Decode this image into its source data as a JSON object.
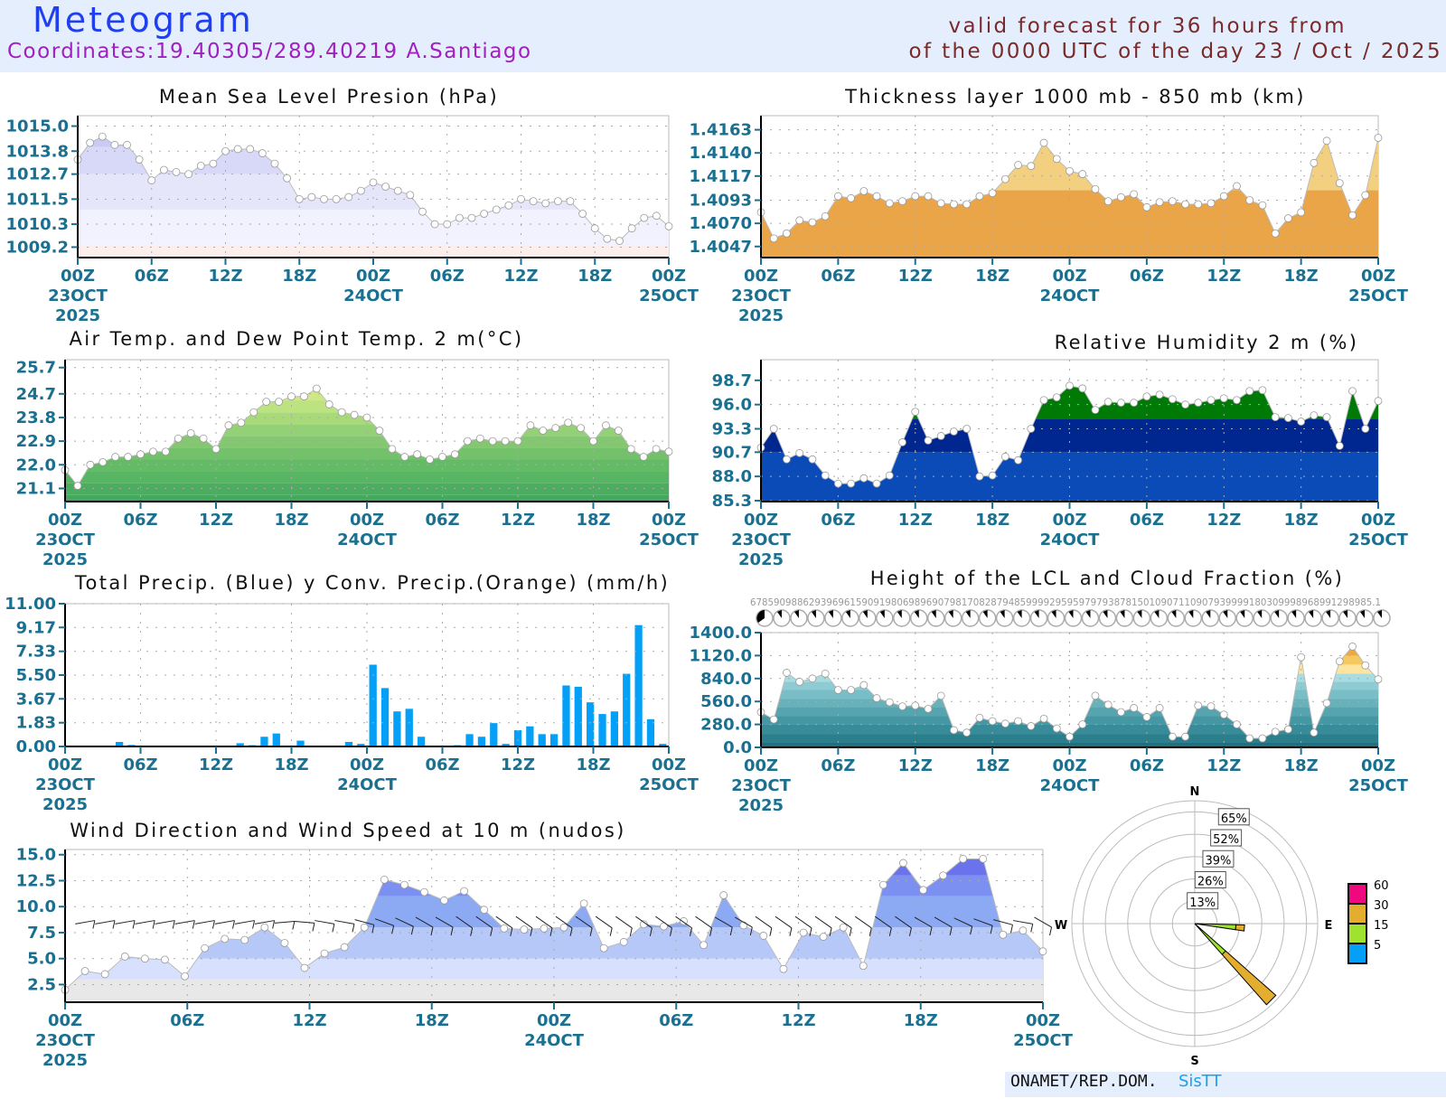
{
  "header": {
    "title": "Meteogram",
    "coordinates": "Coordinates:19.40305/289.40219  A.Santiago",
    "valid_line1": "valid forecast for 36 hours from",
    "valid_line2": "of the 0000 UTC of the day 23 / Oct / 2025"
  },
  "time_axis": {
    "labels": [
      [
        "00Z",
        "23OCT",
        "2025"
      ],
      [
        "06Z"
      ],
      [
        "12Z"
      ],
      [
        "18Z"
      ],
      [
        "00Z",
        "24OCT"
      ],
      [
        "06Z"
      ],
      [
        "12Z"
      ],
      [
        "18Z"
      ],
      [
        "00Z",
        "25OCT"
      ]
    ]
  },
  "footer": {
    "org": "ONAMET/REP.DOM.",
    "brand": "SisTT"
  },
  "chart_data": [
    {
      "id": "mslp",
      "type": "area",
      "title": "Mean Sea Level Presion (hPa)",
      "yticks": [
        1009.2,
        1010.3,
        1011.5,
        1012.7,
        1013.8,
        1015.0
      ],
      "ylim": [
        8.7,
        15.5
      ],
      "base_offset": 1000,
      "x_hours": [
        0,
        48
      ],
      "grid": true,
      "values": [
        1013.4,
        1014.2,
        1014.5,
        1014.1,
        1014.1,
        1013.4,
        1012.4,
        1012.9,
        1012.8,
        1012.7,
        1013.1,
        1013.2,
        1013.8,
        1013.9,
        1013.9,
        1013.7,
        1013.2,
        1012.5,
        1011.5,
        1011.6,
        1011.5,
        1011.5,
        1011.6,
        1011.9,
        1012.3,
        1012.1,
        1011.9,
        1011.7,
        1010.9,
        1010.3,
        1010.3,
        1010.6,
        1010.6,
        1010.8,
        1011.0,
        1011.2,
        1011.5,
        1011.4,
        1011.3,
        1011.4,
        1011.4,
        1010.8,
        1010.1,
        1009.6,
        1009.5,
        1010.1,
        1010.6,
        1010.7,
        1010.2
      ],
      "band_colors": [
        "#fdeeee",
        "#f2f2fe",
        "#e6e6fb",
        "#d8d8f8",
        "#cacaf4"
      ],
      "band_edges": [
        8.7,
        9.3,
        11.0,
        12.7,
        14.0,
        15.5
      ]
    },
    {
      "id": "thickness",
      "type": "area",
      "title": "Thickness layer 1000 mb - 850 mb (km)",
      "yticks": [
        1.4047,
        1.407,
        1.4093,
        1.4117,
        1.414,
        1.4163
      ],
      "ylim": [
        1.4036,
        1.4177
      ],
      "x_hours": [
        0,
        48
      ],
      "grid": true,
      "values": [
        1.4081,
        1.4055,
        1.406,
        1.4073,
        1.4071,
        1.4077,
        1.4097,
        1.4095,
        1.4102,
        1.4097,
        1.409,
        1.4092,
        1.4097,
        1.4097,
        1.409,
        1.4089,
        1.4089,
        1.4097,
        1.41,
        1.4114,
        1.4128,
        1.4127,
        1.415,
        1.4134,
        1.4122,
        1.4119,
        1.4104,
        1.4092,
        1.4096,
        1.4099,
        1.4086,
        1.4091,
        1.4092,
        1.4089,
        1.4089,
        1.409,
        1.4097,
        1.4107,
        1.4093,
        1.4088,
        1.406,
        1.4075,
        1.4081,
        1.413,
        1.4152,
        1.411,
        1.4078,
        1.4098,
        1.4155
      ],
      "band_colors": [
        "#eba549",
        "#f3cf80"
      ],
      "band_edges": [
        1.4036,
        1.4103,
        1.4177
      ]
    },
    {
      "id": "temperature",
      "type": "area",
      "title": "Air Temp. and Dew Point Temp. 2 m(°C)",
      "yticks": [
        21.1,
        22.0,
        22.9,
        23.8,
        24.7,
        25.7
      ],
      "ylim": [
        20.6,
        26.0
      ],
      "x_hours": [
        0,
        48
      ],
      "grid": true,
      "values": [
        21.8,
        21.2,
        22.0,
        22.1,
        22.3,
        22.3,
        22.4,
        22.5,
        22.5,
        23.0,
        23.2,
        23.0,
        22.6,
        23.5,
        23.6,
        24.0,
        24.4,
        24.4,
        24.6,
        24.6,
        24.9,
        24.3,
        24.0,
        23.9,
        23.8,
        23.3,
        22.6,
        22.3,
        22.4,
        22.2,
        22.3,
        22.4,
        22.9,
        23.0,
        22.9,
        22.9,
        22.9,
        23.5,
        23.3,
        23.4,
        23.6,
        23.4,
        22.9,
        23.5,
        23.3,
        22.6,
        22.3,
        22.6,
        22.5
      ],
      "band_colors": [
        "#44a85e",
        "#4cad60",
        "#57b563",
        "#64bb66",
        "#73c16b",
        "#83c870",
        "#94d075",
        "#a8da7a",
        "#bde380",
        "#cfe887"
      ],
      "band_edges": [
        20.6,
        20.85,
        21.3,
        21.75,
        22.2,
        22.65,
        23.1,
        23.55,
        24.0,
        24.45,
        26.0
      ]
    },
    {
      "id": "humidity",
      "type": "area",
      "title": "Relative Humidity 2 m (%)",
      "yticks": [
        85.3,
        88.0,
        90.7,
        93.3,
        96.0,
        98.7
      ],
      "ylim": [
        85.2,
        101.0
      ],
      "x_hours": [
        0,
        48
      ],
      "grid": true,
      "values": [
        91.2,
        93.3,
        89.9,
        90.6,
        89.9,
        88.1,
        87.2,
        87.2,
        87.8,
        87.2,
        88.1,
        91.8,
        95.2,
        92.0,
        92.5,
        93.0,
        93.3,
        88.0,
        88.1,
        90.2,
        89.8,
        93.3,
        96.5,
        96.8,
        98.1,
        97.8,
        95.4,
        96.3,
        96.2,
        96.2,
        96.9,
        97.1,
        96.6,
        96.0,
        96.2,
        96.5,
        96.7,
        96.5,
        97.5,
        97.6,
        94.6,
        94.5,
        94.1,
        94.8,
        94.6,
        91.4,
        97.5,
        93.3,
        96.4
      ],
      "band_colors": [
        "#0b4bb7",
        "#002690",
        "#007a06",
        "#4db14d"
      ],
      "band_edges": [
        85.2,
        90.7,
        94.4,
        98.0,
        101.0
      ]
    },
    {
      "id": "precip",
      "type": "bar",
      "title": "Total Precip. (Blue) y Conv. Precip.(Orange) (mm/h)",
      "yticks": [
        0.0,
        1.83,
        3.67,
        5.5,
        7.33,
        9.17,
        11.0
      ],
      "ylim": [
        0,
        11.0
      ],
      "x_hours": [
        0,
        48
      ],
      "grid": true,
      "bar_color": "#04a0f8",
      "values": [
        0,
        0,
        0,
        0,
        0.35,
        0.12,
        0,
        0,
        0,
        0,
        0,
        0,
        0,
        0,
        0.25,
        0.1,
        0.75,
        1.0,
        0,
        0.45,
        0,
        0,
        0,
        0.35,
        0.2,
        6.3,
        4.5,
        2.7,
        2.9,
        0.75,
        0,
        0,
        0.1,
        0.95,
        0.75,
        1.8,
        0.2,
        1.25,
        1.55,
        0.95,
        0.95,
        4.7,
        4.6,
        3.4,
        2.5,
        2.7,
        5.6,
        9.35,
        2.1,
        0.2
      ]
    },
    {
      "id": "lcl",
      "type": "area",
      "title": "Height of the LCL and Cloud Fraction (%)",
      "yticks": [
        0.0,
        280.0,
        560.0,
        840.0,
        1120.0,
        1400.0
      ],
      "ylim": [
        0,
        1400
      ],
      "x_hours": [
        0,
        48
      ],
      "grid": true,
      "values": [
        430,
        340,
        910,
        800,
        840,
        900,
        700,
        700,
        760,
        600,
        550,
        500,
        510,
        470,
        630,
        210,
        180,
        360,
        320,
        290,
        320,
        260,
        350,
        230,
        130,
        280,
        630,
        520,
        430,
        480,
        370,
        480,
        130,
        130,
        510,
        500,
        400,
        280,
        110,
        110,
        190,
        220,
        1100,
        180,
        540,
        1050,
        1230,
        1000,
        830
      ],
      "band_colors": [
        "#22707f",
        "#2b7e8c",
        "#388b98",
        "#4497a3",
        "#55a4af",
        "#67b1bb",
        "#79bdc6",
        "#8ecbd2",
        "#a5dde3",
        "#fde5a0",
        "#f6c860",
        "#f0a742"
      ],
      "band_edges": [
        0,
        60,
        160,
        280,
        380,
        490,
        590,
        700,
        800,
        900,
        1010,
        1120,
        1250,
        1400
      ],
      "cloud_fraction_labels": "6785909886293969615909198069896907981708287948599992959597979387815010907110907939999180309998968991298985.1",
      "cloud_symbols_count": 37
    },
    {
      "id": "wind",
      "type": "area",
      "title": "Wind Direction and Wind Speed at 10 m (nudos)",
      "yticks": [
        2.5,
        5.0,
        7.5,
        10.0,
        12.5,
        15.0
      ],
      "ylim": [
        0.8,
        15.5
      ],
      "x_hours": [
        0,
        48
      ],
      "grid": true,
      "values": [
        2.0,
        3.8,
        3.5,
        5.2,
        5.0,
        4.9,
        3.3,
        6.0,
        6.9,
        6.8,
        8.0,
        6.5,
        4.1,
        5.5,
        6.1,
        8.0,
        12.6,
        12.1,
        11.4,
        10.6,
        11.5,
        9.7,
        7.9,
        7.8,
        7.9,
        8.0,
        10.3,
        6.0,
        6.6,
        8.3,
        8.1,
        8.6,
        6.3,
        11.1,
        8.2,
        7.2,
        4.0,
        7.5,
        7.1,
        8.0,
        4.3,
        12.1,
        14.2,
        11.6,
        13.0,
        14.6,
        14.6,
        7.3,
        7.7,
        5.7
      ],
      "band_colors": [
        "#e8e8e8",
        "#d7e0fc",
        "#b6c8f8",
        "#8caaf4",
        "#7b90f0",
        "#6a72ec"
      ],
      "band_edges": [
        0.8,
        3.0,
        5.0,
        8.0,
        11.0,
        13.0,
        15.5
      ],
      "barb_direction_deg": [
        120,
        80,
        80,
        80,
        80,
        80,
        80,
        80,
        80,
        80,
        80,
        85,
        95,
        100,
        100,
        105,
        110,
        115,
        120,
        120,
        125,
        125,
        125,
        125,
        125,
        125,
        125,
        125,
        125,
        125,
        125,
        125,
        125,
        120,
        120,
        125,
        125,
        125,
        125,
        125,
        125,
        125,
        125,
        120,
        120,
        115,
        110,
        105,
        100,
        120
      ]
    },
    {
      "id": "wind_rose",
      "type": "pie",
      "title": "",
      "ring_labels": [
        "13%",
        "26%",
        "39%",
        "52%",
        "65%"
      ],
      "directions": [
        "N",
        "E",
        "S",
        "W"
      ],
      "legend": [
        {
          "label": "60",
          "color": "#f0087e"
        },
        {
          "label": "30",
          "color": "#e3ad30"
        },
        {
          "label": "15",
          "color": "#9fe330"
        },
        {
          "label": "5",
          "color": "#04a0f8"
        }
      ],
      "petals": [
        {
          "direction_deg": 95,
          "segments": [
            {
              "speed_class": "5-15",
              "percent": 24,
              "color": "#9fe330"
            },
            {
              "speed_class": "15-30",
              "percent": 5,
              "color": "#e3ad30"
            }
          ]
        },
        {
          "direction_deg": 135,
          "segments": [
            {
              "speed_class": "5-15",
              "percent": 24,
              "color": "#9fe330"
            },
            {
              "speed_class": "15-30",
              "percent": 39,
              "color": "#e3ad30"
            }
          ]
        }
      ]
    }
  ]
}
